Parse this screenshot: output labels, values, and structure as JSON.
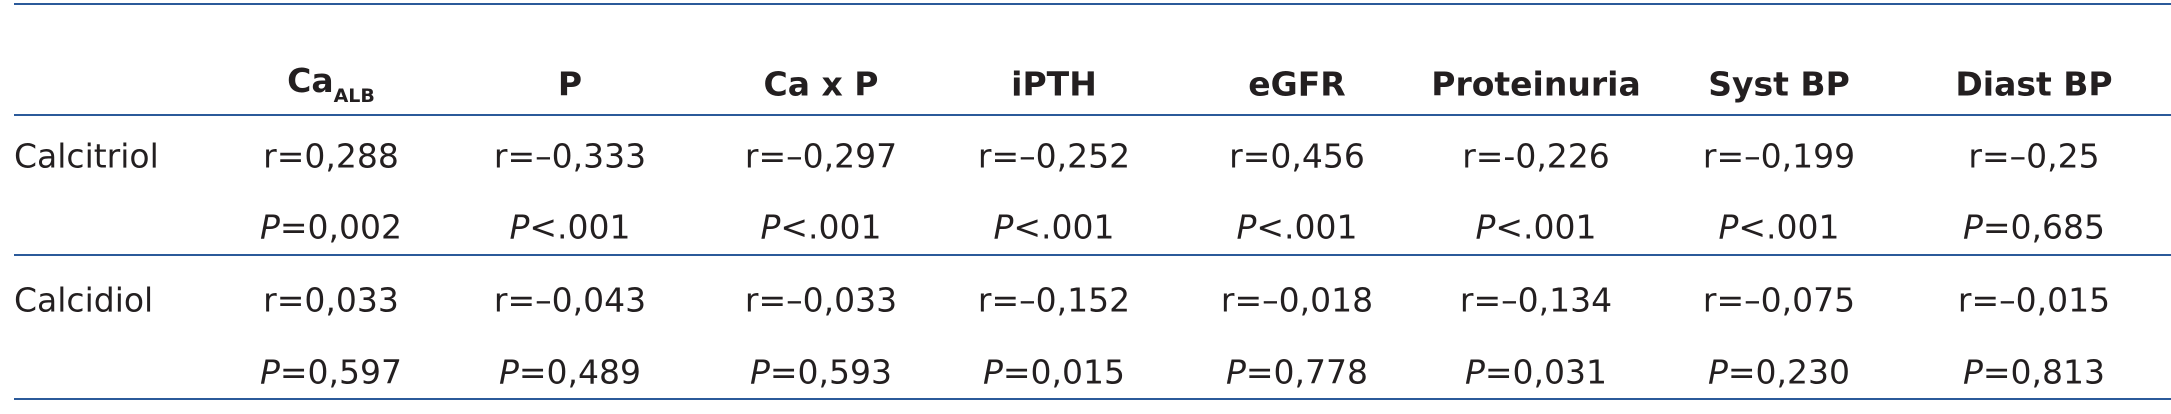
{
  "table": {
    "header": [
      {
        "text": "Ca",
        "sub": "ALB"
      },
      "P",
      "Ca x P",
      "iPTH",
      "eGFR",
      "Proteinuria",
      "Syst BP",
      "Diast BP"
    ],
    "rows": [
      {
        "label": "Calcitriol",
        "r": [
          "r=0,288",
          "r=–0,333",
          "r=–0,297",
          "r=–0,252",
          "r=0,456",
          "r=-0,226",
          "r=–0,199",
          "r=–0,25"
        ],
        "p": [
          "P=0,002",
          "P<.001",
          "P<.001",
          "P<.001",
          "P<.001",
          "P<.001",
          "P<.001",
          "P=0,685"
        ]
      },
      {
        "label": "Calcidiol",
        "r": [
          "r=0,033",
          "r=–0,043",
          "r=–0,033",
          "r=–0,152",
          "r=–0,018",
          "r=–0,134",
          "r=–0,075",
          "r=–0,015"
        ],
        "p": [
          "P=0,597",
          "P=0,489",
          "P=0,593",
          "P=0,015",
          "P=0,778",
          "P=0,031",
          "P=0,230",
          "P=0,813"
        ]
      }
    ]
  }
}
